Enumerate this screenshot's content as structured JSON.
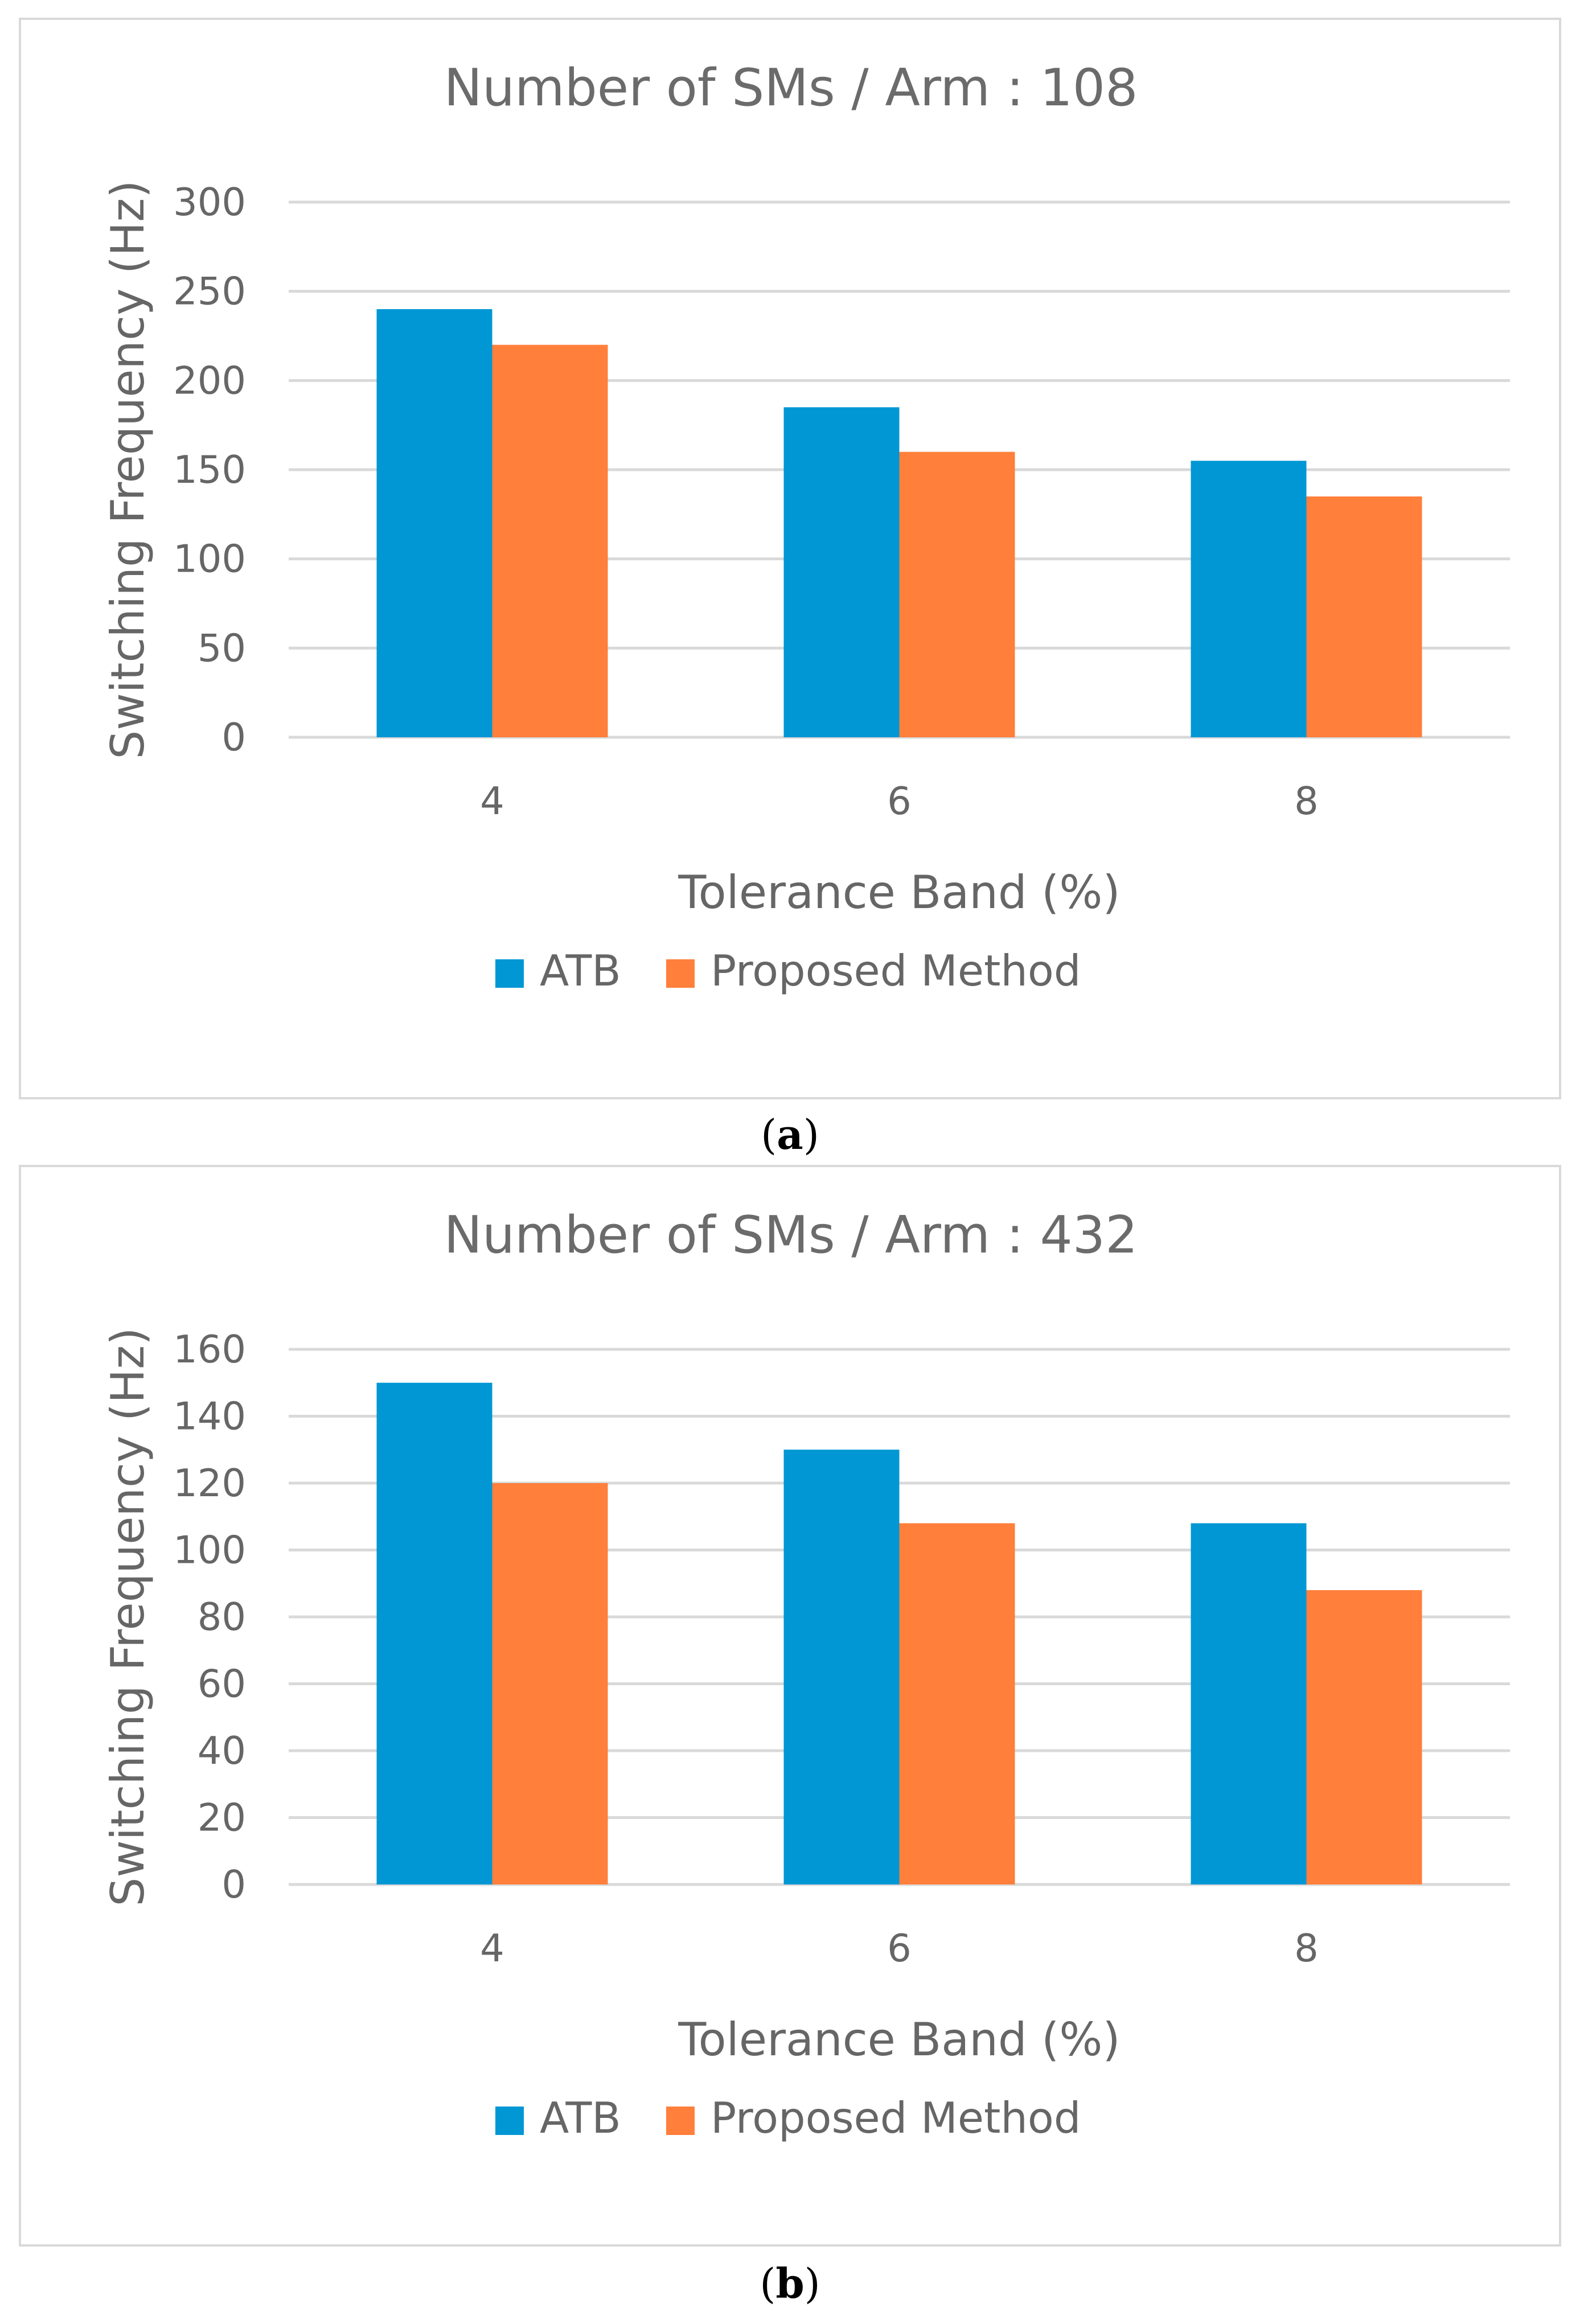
{
  "chart_data": [
    {
      "type": "bar",
      "title": "Number of SMs / Arm : 108",
      "xlabel": "Tolerance Band (%)",
      "ylabel": "Switching Frequency (Hz)",
      "categories": [
        "4",
        "6",
        "8"
      ],
      "series": [
        {
          "name": "ATB",
          "values": [
            240,
            185,
            155
          ]
        },
        {
          "name": "Proposed Method",
          "values": [
            220,
            160,
            135
          ]
        }
      ],
      "ylim": [
        0,
        300
      ],
      "yticks": [
        0,
        50,
        100,
        150,
        200,
        250,
        300
      ],
      "grid": true,
      "legend": "bottom-center",
      "caption": "a"
    },
    {
      "type": "bar",
      "title": "Number of SMs / Arm : 432",
      "xlabel": "Tolerance Band (%)",
      "ylabel": "Switching Frequency (Hz)",
      "categories": [
        "4",
        "6",
        "8"
      ],
      "series": [
        {
          "name": "ATB",
          "values": [
            150,
            130,
            108
          ]
        },
        {
          "name": "Proposed Method",
          "values": [
            120,
            108,
            88
          ]
        }
      ],
      "ylim": [
        0,
        160
      ],
      "yticks": [
        0,
        20,
        40,
        60,
        80,
        100,
        120,
        140,
        160
      ],
      "grid": true,
      "legend": "bottom-center",
      "caption": "b"
    }
  ],
  "colors": {
    "ATB": "#0097d4",
    "Proposed Method": "#ff7f3b",
    "grid": "#d9d9d9",
    "text": "#666666"
  }
}
